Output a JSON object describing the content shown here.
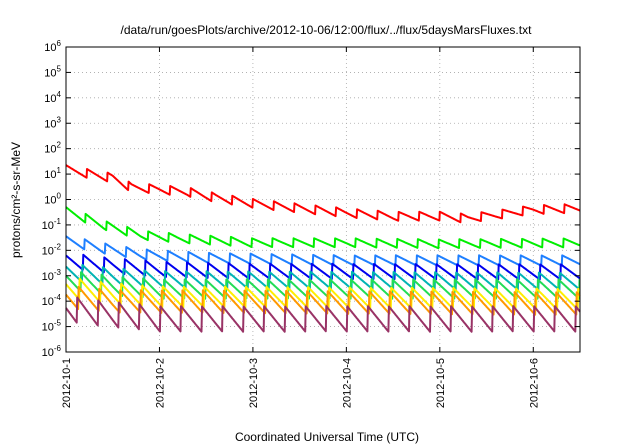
{
  "chart_data": {
    "type": "line",
    "title": "/data/run/goesPlots/archive/2012-10-06/12:00/flux/../flux/5daysMarsFluxes.txt",
    "xlabel": "Coordinated Universal Time (UTC)",
    "ylabel": "protons/cm²-s-sr-MeV",
    "y_scale": "log",
    "ylim": [
      1e-06,
      1000000.0
    ],
    "xlim": [
      0,
      5.5
    ],
    "x_unit": "days since 2012-10-01",
    "x_tick_labels": [
      "2012-10-1",
      "2012-10-2",
      "2012-10-3",
      "2012-10-4",
      "2012-10-5",
      "2012-10-6"
    ],
    "x_tick_values": [
      0,
      1,
      2,
      3,
      4,
      5
    ],
    "y_tick_exponents": [
      -6,
      -5,
      -4,
      -3,
      -2,
      -1,
      0,
      1,
      2,
      3,
      4,
      5,
      6
    ],
    "grid": true,
    "sawtooth_cycles_per_day": 4.5,
    "series": [
      {
        "color": "#ff0000",
        "base": [
          [
            0,
            15
          ],
          [
            0.5,
            7
          ],
          [
            0.7,
            3
          ],
          [
            1.0,
            2.5
          ],
          [
            1.3,
            2.0
          ],
          [
            1.6,
            1.2
          ],
          [
            2.0,
            0.7
          ],
          [
            2.5,
            0.45
          ],
          [
            3.0,
            0.3
          ],
          [
            3.5,
            0.22
          ],
          [
            4.0,
            0.22
          ],
          [
            4.3,
            0.18
          ],
          [
            4.6,
            0.25
          ],
          [
            5.0,
            0.4
          ],
          [
            5.5,
            0.45
          ]
        ],
        "amp": 1.5
      },
      {
        "color": "#00ee00",
        "base": [
          [
            0,
            0.35
          ],
          [
            0.4,
            0.1
          ],
          [
            0.8,
            0.04
          ],
          [
            1.2,
            0.03
          ],
          [
            2.0,
            0.02
          ],
          [
            3.0,
            0.02
          ],
          [
            4.0,
            0.018
          ],
          [
            5.5,
            0.02
          ]
        ],
        "amp": 1.5
      },
      {
        "color": "#1e7fff",
        "base": [
          [
            0,
            0.025
          ],
          [
            0.4,
            0.012
          ],
          [
            0.8,
            0.007
          ],
          [
            1.5,
            0.005
          ],
          [
            3.0,
            0.004
          ],
          [
            5.5,
            0.004
          ]
        ],
        "amp": 1.6
      },
      {
        "color": "#0000ee",
        "base": [
          [
            0,
            0.004
          ],
          [
            0.5,
            0.0025
          ],
          [
            1.0,
            0.0018
          ],
          [
            2.0,
            0.0015
          ],
          [
            5.5,
            0.0014
          ]
        ],
        "amp": 2.0
      },
      {
        "color": "#00b4b4",
        "base": [
          [
            0,
            0.0015
          ],
          [
            0.5,
            0.0009
          ],
          [
            1.0,
            0.0007
          ],
          [
            5.5,
            0.0006
          ]
        ],
        "amp": 2.2
      },
      {
        "color": "#22dd55",
        "base": [
          [
            0,
            0.0007
          ],
          [
            0.5,
            0.0004
          ],
          [
            1.0,
            0.0003
          ],
          [
            5.5,
            0.0003
          ]
        ],
        "amp": 2.4
      },
      {
        "color": "#ffee00",
        "base": [
          [
            0,
            0.00035
          ],
          [
            0.5,
            0.0002
          ],
          [
            1.0,
            0.00015
          ],
          [
            5.5,
            0.00012
          ]
        ],
        "amp": 2.6
      },
      {
        "color": "#ff9900",
        "base": [
          [
            0,
            0.00015
          ],
          [
            0.5,
            0.0001
          ],
          [
            5.5,
            8e-05
          ]
        ],
        "amp": 2.8
      },
      {
        "color": "#993366",
        "base": [
          [
            0,
            5e-05
          ],
          [
            0.5,
            3e-05
          ],
          [
            1.0,
            2e-05
          ],
          [
            5.5,
            2e-05
          ]
        ],
        "amp": 3.2
      }
    ]
  }
}
